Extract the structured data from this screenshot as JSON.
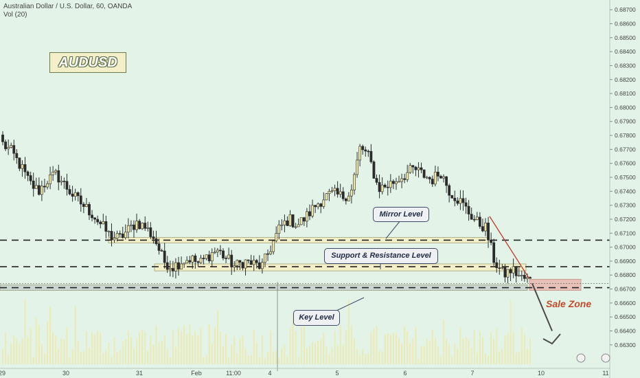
{
  "header": {
    "symbol_line": "Australian Dollar / U.S. Dollar, 60, OANDA",
    "volume_line": "Vol (20)"
  },
  "ticker_label": "AUDUSD",
  "annotations": {
    "mirror": "Mirror Level",
    "sr": "Support & Resistance Level",
    "key": "Key Level",
    "sale": "Sale Zone"
  },
  "colors": {
    "background": "#e3f3e8",
    "bull": "#f1e9a8",
    "bear": "#2b2b2b",
    "zone_fill": "#f4efc6",
    "sale_zone_fill": "#e8b8b0",
    "trend_line": "#c0392b"
  },
  "chart_data": {
    "type": "candlestick",
    "symbol": "AUDUSD",
    "timeframe": "60",
    "y_axis": {
      "range": [
        0.6625,
        0.6875
      ],
      "tick_labels": [
        "0.68700",
        "0.68600",
        "0.68500",
        "0.68400",
        "0.68300",
        "0.68200",
        "0.68100",
        "0.68000",
        "0.67900",
        "0.67800",
        "0.67700",
        "0.67600",
        "0.67500",
        "0.67400",
        "0.67300",
        "0.67200",
        "0.67100",
        "0.67000",
        "0.66900",
        "0.66800",
        "0.66700",
        "0.66600",
        "0.66500",
        "0.66400",
        "0.66300"
      ]
    },
    "x_axis": {
      "tick_labels": [
        "29",
        "30",
        "31",
        "Feb",
        "11:00",
        "4",
        "5",
        "6",
        "7",
        "10",
        "11"
      ]
    },
    "price_path": [
      0.6774,
      0.6768,
      0.6758,
      0.6746,
      0.674,
      0.6748,
      0.6752,
      0.6744,
      0.6736,
      0.673,
      0.6724,
      0.6716,
      0.6708,
      0.6706,
      0.6712,
      0.6718,
      0.6714,
      0.6706,
      0.669,
      0.6686,
      0.669,
      0.6692,
      0.6688,
      0.6694,
      0.6698,
      0.6692,
      0.6686,
      0.669,
      0.6688,
      0.6686,
      0.67,
      0.6714,
      0.672,
      0.6716,
      0.6722,
      0.673,
      0.6736,
      0.6738,
      0.6736,
      0.674,
      0.6772,
      0.6764,
      0.6742,
      0.6744,
      0.6748,
      0.6752,
      0.6756,
      0.6752,
      0.6748,
      0.6754,
      0.674,
      0.6734,
      0.6726,
      0.6718,
      0.6714,
      0.669,
      0.668,
      0.6684,
      0.6678,
      0.6676
    ],
    "horizontal_levels": [
      {
        "name": "Mirror Level",
        "price": 0.6705,
        "zone": [
          0.6703,
          0.6707
        ]
      },
      {
        "name": "Support & Resistance Level",
        "price": 0.6686,
        "zone": [
          0.6683,
          0.6688
        ]
      },
      {
        "name": "Key Level",
        "price": 0.6671,
        "zone": [
          0.6669,
          0.6673
        ]
      }
    ],
    "sale_zone": [
      0.6669,
      0.6677
    ],
    "volume_series_name": "Vol (20)"
  }
}
